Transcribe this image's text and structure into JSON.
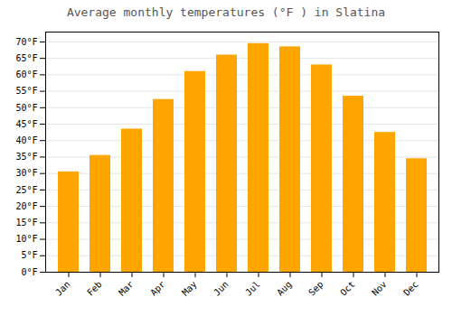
{
  "chart_data": {
    "type": "bar",
    "title": "Average monthly temperatures (°F ) in Slatina",
    "categories": [
      "Jan",
      "Feb",
      "Mar",
      "Apr",
      "May",
      "Jun",
      "Jul",
      "Aug",
      "Sep",
      "Oct",
      "Nov",
      "Dec"
    ],
    "values": [
      30.5,
      35.5,
      43.5,
      52.5,
      61.0,
      66.0,
      69.5,
      68.5,
      63.0,
      53.5,
      42.5,
      34.5
    ],
    "color": "#FFA500",
    "ylim": [
      0,
      73
    ],
    "yticks": [
      {
        "value": 0,
        "label": "0°F"
      },
      {
        "value": 5,
        "label": "5°F"
      },
      {
        "value": 10,
        "label": "10°F"
      },
      {
        "value": 15,
        "label": "15°F"
      },
      {
        "value": 20,
        "label": "20°F"
      },
      {
        "value": 25,
        "label": "25°F"
      },
      {
        "value": 30,
        "label": "30°F"
      },
      {
        "value": 35,
        "label": "35°F"
      },
      {
        "value": 40,
        "label": "40°F"
      },
      {
        "value": 45,
        "label": "45°F"
      },
      {
        "value": 50,
        "label": "50°F"
      },
      {
        "value": 55,
        "label": "55°F"
      },
      {
        "value": 60,
        "label": "60°F"
      },
      {
        "value": 65,
        "label": "65°F"
      },
      {
        "value": 70,
        "label": "70°F"
      }
    ],
    "grid": true
  }
}
